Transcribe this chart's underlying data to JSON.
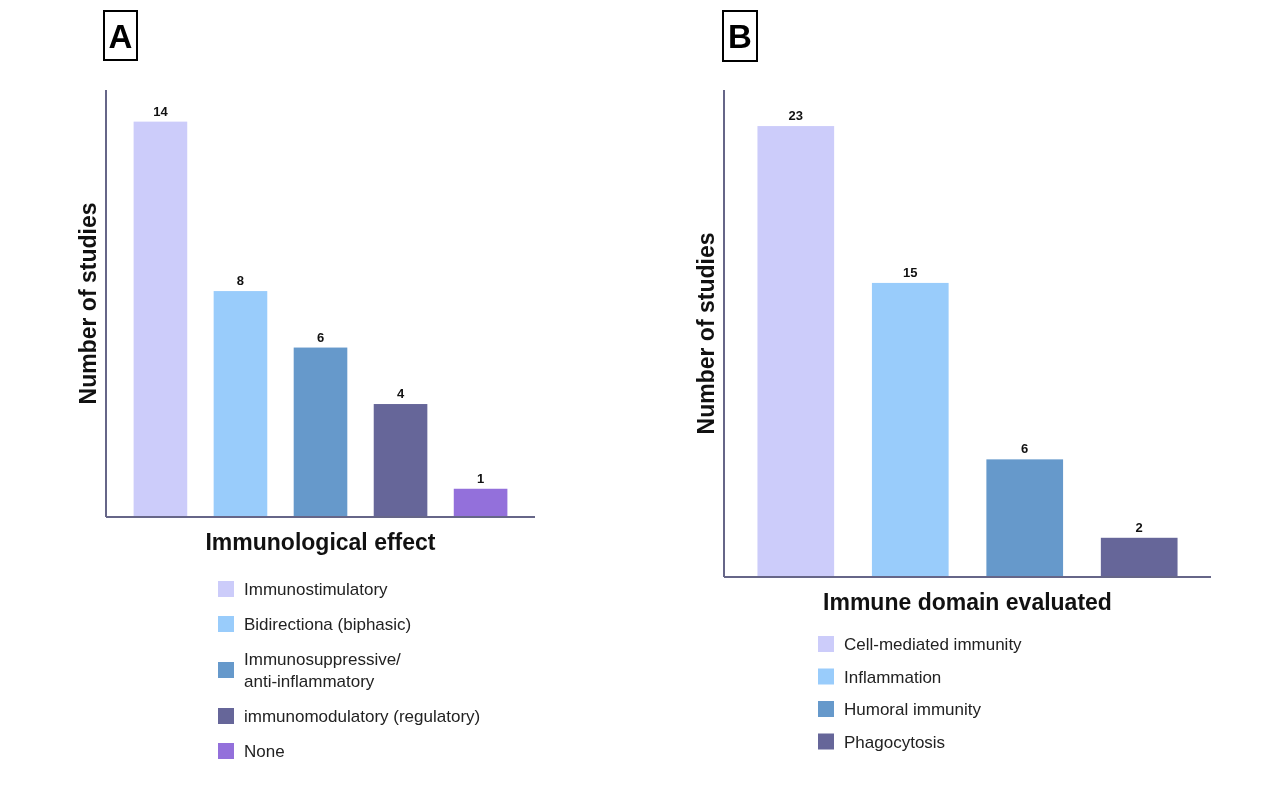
{
  "chart_data": [
    {
      "type": "bar",
      "title": "A",
      "xlabel": "Immunological effect",
      "ylabel": "Number of studies",
      "categories": [
        null,
        null,
        null,
        null,
        null
      ],
      "stacked": true,
      "series": [
        {
          "name": "Immunostimulatory",
          "color": "#ccccfa",
          "values": [
            14,
            null,
            null,
            null,
            null
          ]
        },
        {
          "name": "Bidirectiona (biphasic)",
          "color": "#99ccfb",
          "values": [
            null,
            8,
            null,
            null,
            null
          ]
        },
        {
          "name": "Immunosuppressive/anti-inflammatory",
          "color": "#6699cb",
          "values": [
            null,
            null,
            6,
            null,
            null
          ]
        },
        {
          "name": "immunomodulatory (regulatory)",
          "color": "#666699",
          "values": [
            null,
            null,
            null,
            4,
            null
          ]
        },
        {
          "name": "None",
          "color": "#9370db",
          "values": [
            null,
            null,
            null,
            null,
            1
          ]
        }
      ],
      "data_labels": true,
      "legend": "bottom"
    },
    {
      "type": "bar",
      "title": "B",
      "xlabel": "Immune domain evaluated",
      "ylabel": "Number of studies",
      "categories": [
        null,
        null,
        null,
        null
      ],
      "stacked": true,
      "series": [
        {
          "name": "Cell-mediated immunity",
          "color": "#ccccfa",
          "values": [
            23,
            null,
            null,
            null
          ]
        },
        {
          "name": "Inflammation",
          "color": "#99ccfb",
          "values": [
            null,
            15,
            null,
            null
          ]
        },
        {
          "name": "Humoral immunity",
          "color": "#6699cb",
          "values": [
            null,
            null,
            6,
            null
          ]
        },
        {
          "name": "Phagocytosis",
          "color": "#666699",
          "values": [
            null,
            null,
            null,
            2
          ]
        }
      ],
      "data_labels": true,
      "legend": "bottom"
    }
  ]
}
